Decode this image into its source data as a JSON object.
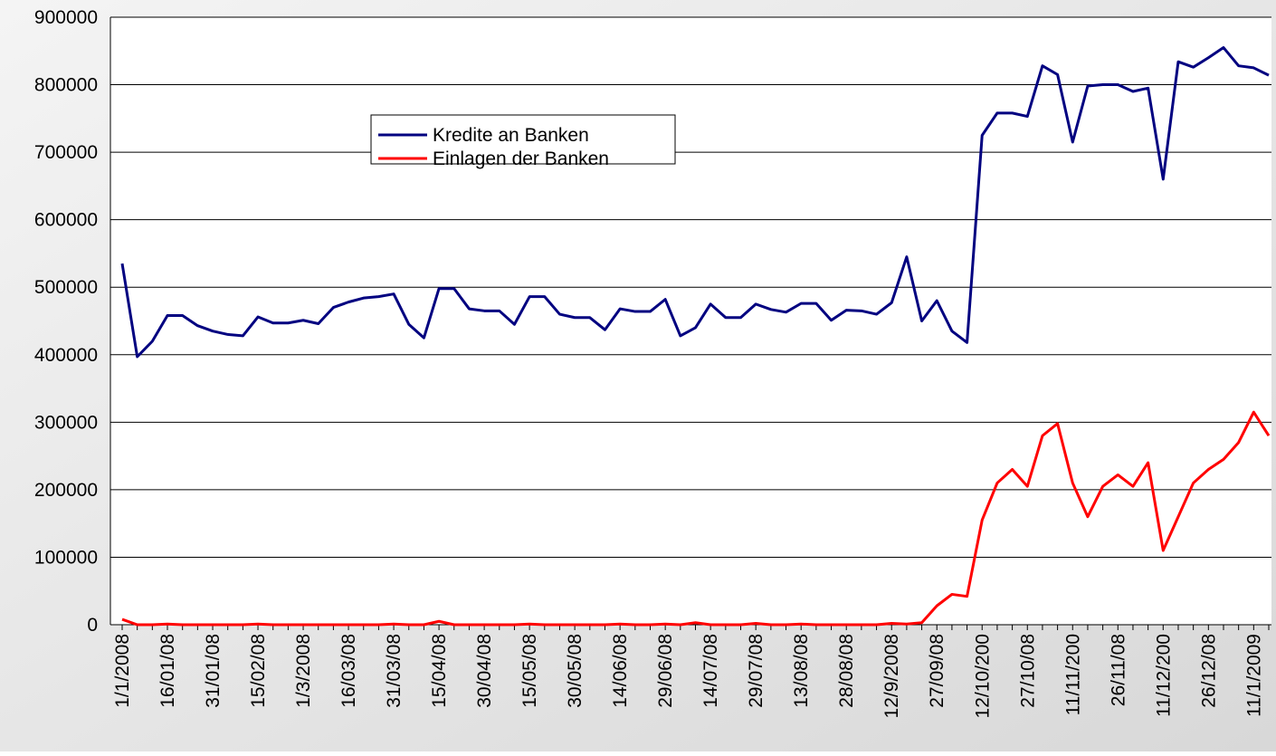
{
  "chart_data": {
    "type": "line",
    "categories": [
      "1/1/2008",
      null,
      null,
      "16/01/08",
      null,
      null,
      "31/01/08",
      null,
      null,
      "15/02/08",
      null,
      null,
      "1/3/2008",
      null,
      null,
      "16/03/08",
      null,
      null,
      "31/03/08",
      null,
      null,
      "15/04/08",
      null,
      null,
      "30/04/08",
      null,
      null,
      "15/05/08",
      null,
      null,
      "30/05/08",
      null,
      null,
      "14/06/08",
      null,
      null,
      "29/06/08",
      null,
      null,
      "14/07/08",
      null,
      null,
      "29/07/08",
      null,
      null,
      "13/08/08",
      null,
      null,
      "28/08/08",
      null,
      null,
      "12/9/2008",
      null,
      null,
      "27/09/08",
      null,
      null,
      "12/10/200",
      null,
      null,
      "27/10/08",
      null,
      null,
      "11/11/200",
      null,
      null,
      "26/11/08",
      null,
      null,
      "11/12/200",
      null,
      null,
      "26/12/08",
      null,
      null,
      "11/1/2009",
      null
    ],
    "series": [
      {
        "name": "Kredite an Banken",
        "color": "#000080",
        "values": [
          535000,
          397000,
          420000,
          458000,
          458000,
          443000,
          435000,
          430000,
          428000,
          456000,
          447000,
          447000,
          451000,
          446000,
          470000,
          478000,
          484000,
          486000,
          490000,
          445000,
          425000,
          498000,
          498000,
          468000,
          465000,
          465000,
          445000,
          486000,
          486000,
          460000,
          455000,
          455000,
          437000,
          468000,
          464000,
          464000,
          482000,
          428000,
          440000,
          475000,
          455000,
          455000,
          475000,
          467000,
          463000,
          476000,
          476000,
          451000,
          466000,
          465000,
          460000,
          477000,
          545000,
          450000,
          480000,
          435000,
          418000,
          725000,
          758000,
          758000,
          753000,
          828000,
          815000,
          715000,
          798000,
          800000,
          800000,
          790000,
          795000,
          660000,
          834000,
          826000,
          840000,
          855000,
          828000,
          825000,
          814000
        ]
      },
      {
        "name": "Einlagen der Banken",
        "color": "#ff0000",
        "values": [
          8000,
          0,
          0,
          1000,
          0,
          0,
          0,
          0,
          0,
          1000,
          0,
          0,
          0,
          0,
          0,
          0,
          0,
          0,
          1000,
          0,
          0,
          5000,
          0,
          0,
          0,
          0,
          0,
          1000,
          0,
          0,
          0,
          0,
          0,
          1000,
          0,
          0,
          1000,
          0,
          3000,
          0,
          0,
          0,
          2000,
          0,
          0,
          1000,
          0,
          0,
          0,
          0,
          0,
          2000,
          1000,
          3000,
          28000,
          45000,
          42000,
          155000,
          210000,
          230000,
          205000,
          280000,
          298000,
          210000,
          160000,
          205000,
          222000,
          205000,
          240000,
          110000,
          160000,
          210000,
          230000,
          245000,
          270000,
          315000,
          280000
        ]
      }
    ],
    "ylim": [
      0,
      900000
    ],
    "yticks": [
      0,
      100000,
      200000,
      300000,
      400000,
      500000,
      600000,
      700000,
      800000,
      900000
    ],
    "grid": true
  }
}
